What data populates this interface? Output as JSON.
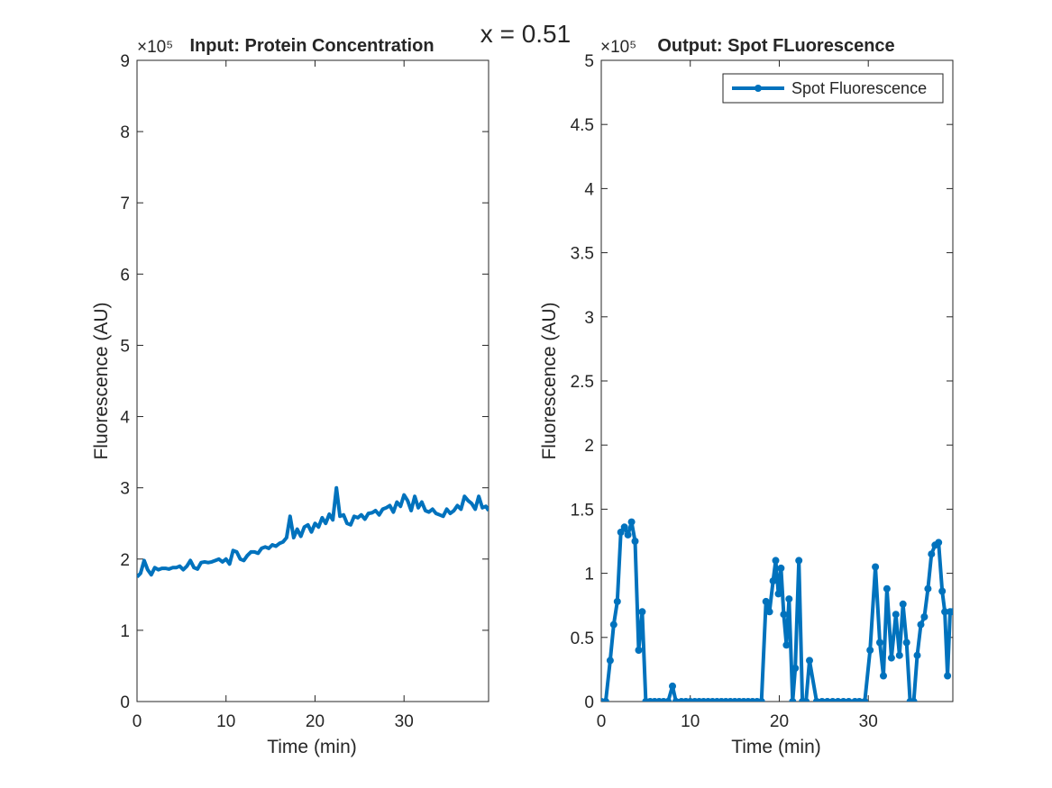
{
  "suptitle": "x = 0.51",
  "chart_data": [
    {
      "type": "line",
      "title": "Input: Protein Concentration",
      "xlabel": "Time (min)",
      "ylabel": "Fluorescence (AU)",
      "exponent_label": "×10⁵",
      "xlim": [
        0,
        39.5
      ],
      "ylim": [
        0,
        9
      ],
      "xticks": [
        0,
        10,
        20,
        30
      ],
      "yticks": [
        0,
        1,
        2,
        3,
        4,
        5,
        6,
        7,
        8,
        9
      ],
      "ytick_labels": [
        "0",
        "1",
        "2",
        "3",
        "4",
        "5",
        "6",
        "7",
        "8",
        "9"
      ],
      "markers": false,
      "legend": null,
      "color": "#0072BD",
      "series": [
        {
          "x": [
            0,
            0.4,
            0.8,
            1.2,
            1.6,
            2.0,
            2.4,
            2.8,
            3.2,
            3.6,
            4.0,
            4.4,
            4.8,
            5.2,
            5.6,
            6.0,
            6.4,
            6.8,
            7.2,
            7.6,
            8.0,
            8.4,
            8.8,
            9.2,
            9.6,
            10.0,
            10.4,
            10.8,
            11.2,
            11.6,
            12.0,
            12.4,
            12.8,
            13.2,
            13.6,
            14.0,
            14.4,
            14.8,
            15.2,
            15.6,
            16.0,
            16.4,
            16.8,
            17.2,
            17.6,
            18.0,
            18.4,
            18.8,
            19.2,
            19.6,
            20.0,
            20.4,
            20.8,
            21.2,
            21.6,
            22.0,
            22.4,
            22.8,
            23.2,
            23.6,
            24.0,
            24.4,
            24.8,
            25.2,
            25.6,
            26.0,
            26.4,
            26.8,
            27.2,
            27.6,
            28.0,
            28.4,
            28.8,
            29.2,
            29.6,
            30.0,
            30.4,
            30.8,
            31.2,
            31.6,
            32.0,
            32.4,
            32.8,
            33.2,
            33.6,
            34.0,
            34.4,
            34.8,
            35.2,
            35.6,
            36.0,
            36.4,
            36.8,
            37.2,
            37.6,
            38.0,
            38.4,
            38.8,
            39.2,
            39.5
          ],
          "values": [
            1.75,
            1.8,
            1.98,
            1.85,
            1.78,
            1.88,
            1.85,
            1.87,
            1.87,
            1.86,
            1.88,
            1.88,
            1.9,
            1.85,
            1.9,
            1.98,
            1.88,
            1.86,
            1.95,
            1.96,
            1.95,
            1.96,
            1.98,
            2.0,
            1.96,
            2.0,
            1.93,
            2.12,
            2.1,
            2.0,
            1.98,
            2.05,
            2.1,
            2.1,
            2.08,
            2.15,
            2.17,
            2.15,
            2.2,
            2.18,
            2.22,
            2.24,
            2.3,
            2.6,
            2.3,
            2.42,
            2.32,
            2.45,
            2.48,
            2.38,
            2.5,
            2.45,
            2.58,
            2.5,
            2.63,
            2.55,
            3.0,
            2.6,
            2.62,
            2.5,
            2.48,
            2.6,
            2.58,
            2.62,
            2.56,
            2.64,
            2.65,
            2.68,
            2.62,
            2.7,
            2.72,
            2.75,
            2.66,
            2.8,
            2.74,
            2.9,
            2.82,
            2.68,
            2.88,
            2.72,
            2.8,
            2.68,
            2.66,
            2.7,
            2.64,
            2.62,
            2.6,
            2.7,
            2.64,
            2.68,
            2.75,
            2.7,
            2.88,
            2.82,
            2.78,
            2.7,
            2.88,
            2.72,
            2.74,
            2.68
          ]
        }
      ]
    },
    {
      "type": "line",
      "title": "Output: Spot FLuorescence",
      "xlabel": "Time (min)",
      "ylabel": "Fluorescence (AU)",
      "exponent_label": "×10⁵",
      "xlim": [
        0,
        39.5
      ],
      "ylim": [
        0,
        5
      ],
      "xticks": [
        0,
        10,
        20,
        30
      ],
      "yticks": [
        0,
        0.5,
        1,
        1.5,
        2,
        2.5,
        3,
        3.5,
        4,
        4.5,
        5
      ],
      "ytick_labels": [
        "0",
        "0.5",
        "1",
        "1.5",
        "2",
        "2.5",
        "3",
        "3.5",
        "4",
        "4.5",
        "5"
      ],
      "markers": true,
      "legend": {
        "location": "top-right",
        "entries": [
          "Spot Fluorescence"
        ]
      },
      "color": "#0072BD",
      "series": [
        {
          "name": "Spot Fluorescence",
          "x": [
            0,
            0.5,
            1.0,
            1.4,
            1.8,
            2.2,
            2.6,
            3.0,
            3.4,
            3.8,
            4.2,
            4.6,
            5.0,
            5.5,
            6.0,
            6.5,
            7.0,
            7.5,
            8.0,
            8.4,
            9.0,
            9.5,
            10.0,
            10.5,
            11.0,
            11.5,
            12.0,
            12.5,
            13.0,
            13.5,
            14.0,
            14.5,
            15.0,
            15.5,
            16.0,
            16.5,
            17.0,
            17.5,
            18.0,
            18.5,
            18.9,
            19.3,
            19.6,
            19.9,
            20.2,
            20.5,
            20.8,
            21.1,
            21.5,
            21.8,
            22.2,
            22.6,
            23.0,
            23.4,
            24.2,
            24.8,
            25.4,
            26.0,
            26.6,
            27.2,
            27.8,
            28.5,
            29.0,
            29.6,
            30.2,
            30.8,
            31.3,
            31.7,
            32.1,
            32.6,
            33.1,
            33.5,
            33.9,
            34.3,
            34.7,
            35.1,
            35.5,
            35.9,
            36.3,
            36.7,
            37.1,
            37.5,
            37.9,
            38.3,
            38.6,
            38.9,
            39.2,
            39.5
          ],
          "values": [
            0,
            0,
            0.32,
            0.6,
            0.78,
            1.32,
            1.36,
            1.3,
            1.4,
            1.25,
            0.4,
            0.7,
            0,
            0,
            0,
            0,
            0,
            0,
            0.12,
            0,
            0,
            0,
            0,
            0,
            0,
            0,
            0,
            0,
            0,
            0,
            0,
            0,
            0,
            0,
            0,
            0,
            0,
            0,
            0,
            0.78,
            0.7,
            0.94,
            1.1,
            0.84,
            1.04,
            0.68,
            0.44,
            0.8,
            0,
            0.26,
            1.1,
            0,
            0,
            0.32,
            0,
            0,
            0,
            0,
            0,
            0,
            0,
            0,
            0,
            0,
            0.4,
            1.05,
            0.46,
            0.2,
            0.88,
            0.34,
            0.68,
            0.36,
            0.76,
            0.46,
            0,
            0,
            0.36,
            0.6,
            0.66,
            0.88,
            1.15,
            1.22,
            1.24,
            0.86,
            0.7,
            0.2,
            0.7,
            0.7
          ]
        }
      ]
    }
  ]
}
